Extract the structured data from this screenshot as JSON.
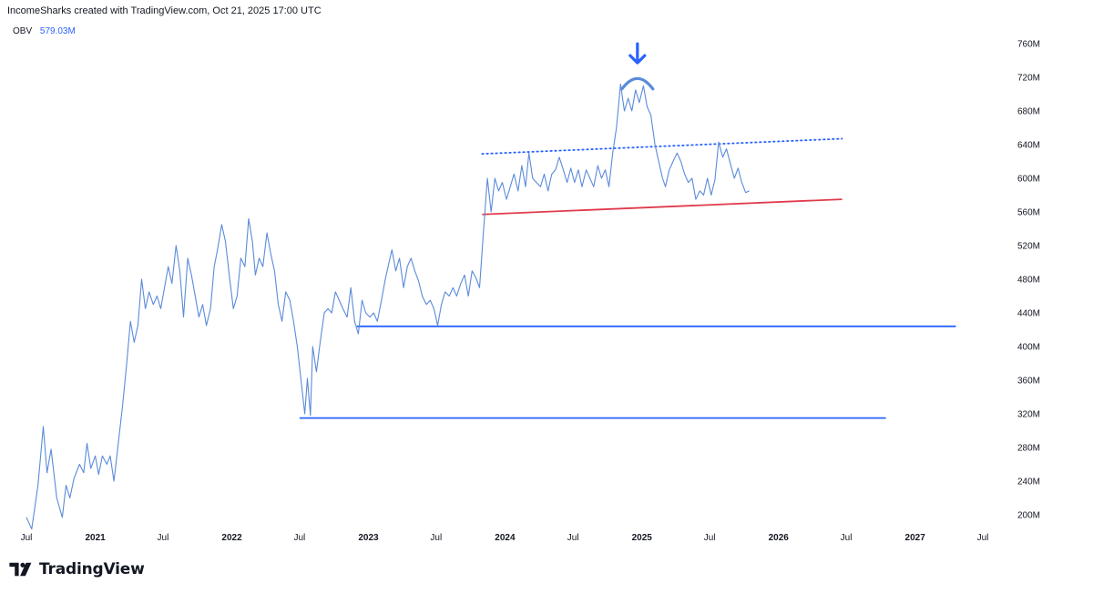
{
  "header": {
    "attribution": "IncomeSharks created with TradingView.com, Oct 21, 2025 17:00 UTC"
  },
  "legend": {
    "indicator": "OBV",
    "value": "579.03M",
    "value_color": "#2962ff"
  },
  "brand": {
    "name": "TradingView"
  },
  "chart_data": {
    "type": "line",
    "indicator": "OBV",
    "unit": "M",
    "y_ticks": [
      200,
      240,
      280,
      320,
      360,
      400,
      440,
      480,
      520,
      560,
      600,
      640,
      680,
      720,
      760
    ],
    "y_tick_labels": [
      "200M",
      "240M",
      "280M",
      "320M",
      "360M",
      "400M",
      "440M",
      "480M",
      "520M",
      "560M",
      "600M",
      "640M",
      "680M",
      "720M",
      "760M"
    ],
    "x_ticks": [
      {
        "date": "2020-07-01",
        "label": "Jul",
        "bold": false
      },
      {
        "date": "2021-01-01",
        "label": "2021",
        "bold": true
      },
      {
        "date": "2021-07-01",
        "label": "Jul",
        "bold": false
      },
      {
        "date": "2022-01-01",
        "label": "2022",
        "bold": true
      },
      {
        "date": "2022-07-01",
        "label": "Jul",
        "bold": false
      },
      {
        "date": "2023-01-01",
        "label": "2023",
        "bold": true
      },
      {
        "date": "2023-07-01",
        "label": "Jul",
        "bold": false
      },
      {
        "date": "2024-01-01",
        "label": "2024",
        "bold": true
      },
      {
        "date": "2024-07-01",
        "label": "Jul",
        "bold": false
      },
      {
        "date": "2025-01-01",
        "label": "2025",
        "bold": true
      },
      {
        "date": "2025-07-01",
        "label": "Jul",
        "bold": false
      },
      {
        "date": "2026-01-01",
        "label": "2026",
        "bold": true
      },
      {
        "date": "2026-07-01",
        "label": "Jul",
        "bold": false
      },
      {
        "date": "2027-01-01",
        "label": "2027",
        "bold": true
      },
      {
        "date": "2027-07-01",
        "label": "Jul",
        "bold": false
      }
    ],
    "series": [
      {
        "color": "#5b8bd9",
        "points": [
          [
            "2020-07-01",
            197
          ],
          [
            "2020-07-15",
            183
          ],
          [
            "2020-08-01",
            235
          ],
          [
            "2020-08-15",
            305
          ],
          [
            "2020-08-25",
            250
          ],
          [
            "2020-09-05",
            278
          ],
          [
            "2020-09-20",
            220
          ],
          [
            "2020-10-05",
            197
          ],
          [
            "2020-10-15",
            235
          ],
          [
            "2020-10-25",
            220
          ],
          [
            "2020-11-05",
            243
          ],
          [
            "2020-11-20",
            260
          ],
          [
            "2020-12-01",
            250
          ],
          [
            "2020-12-10",
            285
          ],
          [
            "2020-12-20",
            255
          ],
          [
            "2021-01-01",
            270
          ],
          [
            "2021-01-10",
            248
          ],
          [
            "2021-01-20",
            270
          ],
          [
            "2021-02-01",
            260
          ],
          [
            "2021-02-10",
            270
          ],
          [
            "2021-02-20",
            240
          ],
          [
            "2021-03-01",
            275
          ],
          [
            "2021-03-15",
            330
          ],
          [
            "2021-03-25",
            375
          ],
          [
            "2021-04-05",
            430
          ],
          [
            "2021-04-15",
            405
          ],
          [
            "2021-04-25",
            425
          ],
          [
            "2021-05-05",
            480
          ],
          [
            "2021-05-15",
            445
          ],
          [
            "2021-05-25",
            465
          ],
          [
            "2021-06-05",
            450
          ],
          [
            "2021-06-15",
            460
          ],
          [
            "2021-06-25",
            445
          ],
          [
            "2021-07-05",
            470
          ],
          [
            "2021-07-15",
            495
          ],
          [
            "2021-07-25",
            475
          ],
          [
            "2021-08-05",
            520
          ],
          [
            "2021-08-15",
            490
          ],
          [
            "2021-08-25",
            435
          ],
          [
            "2021-09-05",
            505
          ],
          [
            "2021-09-15",
            485
          ],
          [
            "2021-09-25",
            460
          ],
          [
            "2021-10-05",
            435
          ],
          [
            "2021-10-15",
            450
          ],
          [
            "2021-10-25",
            425
          ],
          [
            "2021-11-05",
            445
          ],
          [
            "2021-11-15",
            495
          ],
          [
            "2021-11-25",
            518
          ],
          [
            "2021-12-05",
            545
          ],
          [
            "2021-12-15",
            525
          ],
          [
            "2021-12-25",
            485
          ],
          [
            "2022-01-05",
            445
          ],
          [
            "2022-01-15",
            460
          ],
          [
            "2022-01-25",
            505
          ],
          [
            "2022-02-05",
            495
          ],
          [
            "2022-02-15",
            552
          ],
          [
            "2022-02-25",
            525
          ],
          [
            "2022-03-05",
            485
          ],
          [
            "2022-03-15",
            505
          ],
          [
            "2022-03-25",
            495
          ],
          [
            "2022-04-05",
            535
          ],
          [
            "2022-04-15",
            510
          ],
          [
            "2022-04-25",
            490
          ],
          [
            "2022-05-05",
            450
          ],
          [
            "2022-05-15",
            430
          ],
          [
            "2022-05-25",
            465
          ],
          [
            "2022-06-05",
            455
          ],
          [
            "2022-06-15",
            430
          ],
          [
            "2022-06-25",
            400
          ],
          [
            "2022-07-05",
            360
          ],
          [
            "2022-07-15",
            320
          ],
          [
            "2022-07-22",
            362
          ],
          [
            "2022-07-30",
            318
          ],
          [
            "2022-08-05",
            400
          ],
          [
            "2022-08-15",
            370
          ],
          [
            "2022-08-25",
            405
          ],
          [
            "2022-09-05",
            440
          ],
          [
            "2022-09-15",
            445
          ],
          [
            "2022-09-25",
            440
          ],
          [
            "2022-10-05",
            465
          ],
          [
            "2022-10-15",
            455
          ],
          [
            "2022-10-25",
            445
          ],
          [
            "2022-11-05",
            435
          ],
          [
            "2022-11-15",
            470
          ],
          [
            "2022-11-25",
            430
          ],
          [
            "2022-12-05",
            415
          ],
          [
            "2022-12-15",
            455
          ],
          [
            "2022-12-25",
            440
          ],
          [
            "2023-01-05",
            435
          ],
          [
            "2023-01-15",
            440
          ],
          [
            "2023-01-25",
            430
          ],
          [
            "2023-02-05",
            455
          ],
          [
            "2023-02-15",
            480
          ],
          [
            "2023-02-25",
            500
          ],
          [
            "2023-03-05",
            515
          ],
          [
            "2023-03-15",
            490
          ],
          [
            "2023-03-25",
            505
          ],
          [
            "2023-04-05",
            470
          ],
          [
            "2023-04-15",
            495
          ],
          [
            "2023-04-25",
            505
          ],
          [
            "2023-05-05",
            490
          ],
          [
            "2023-05-15",
            478
          ],
          [
            "2023-05-25",
            460
          ],
          [
            "2023-06-05",
            450
          ],
          [
            "2023-06-15",
            455
          ],
          [
            "2023-06-25",
            445
          ],
          [
            "2023-07-05",
            425
          ],
          [
            "2023-07-15",
            450
          ],
          [
            "2023-07-25",
            465
          ],
          [
            "2023-08-05",
            460
          ],
          [
            "2023-08-15",
            470
          ],
          [
            "2023-08-25",
            460
          ],
          [
            "2023-09-05",
            475
          ],
          [
            "2023-09-15",
            485
          ],
          [
            "2023-09-25",
            460
          ],
          [
            "2023-10-05",
            490
          ],
          [
            "2023-10-15",
            482
          ],
          [
            "2023-10-25",
            470
          ],
          [
            "2023-11-05",
            540
          ],
          [
            "2023-11-15",
            600
          ],
          [
            "2023-11-25",
            560
          ],
          [
            "2023-12-05",
            600
          ],
          [
            "2023-12-15",
            585
          ],
          [
            "2023-12-25",
            595
          ],
          [
            "2024-01-05",
            575
          ],
          [
            "2024-01-15",
            590
          ],
          [
            "2024-01-25",
            605
          ],
          [
            "2024-02-05",
            585
          ],
          [
            "2024-02-15",
            615
          ],
          [
            "2024-02-25",
            590
          ],
          [
            "2024-03-05",
            630
          ],
          [
            "2024-03-15",
            600
          ],
          [
            "2024-03-25",
            595
          ],
          [
            "2024-04-05",
            590
          ],
          [
            "2024-04-15",
            605
          ],
          [
            "2024-04-25",
            585
          ],
          [
            "2024-05-05",
            605
          ],
          [
            "2024-05-15",
            610
          ],
          [
            "2024-05-25",
            625
          ],
          [
            "2024-06-05",
            610
          ],
          [
            "2024-06-15",
            595
          ],
          [
            "2024-06-25",
            612
          ],
          [
            "2024-07-05",
            595
          ],
          [
            "2024-07-15",
            610
          ],
          [
            "2024-07-25",
            590
          ],
          [
            "2024-08-05",
            610
          ],
          [
            "2024-08-15",
            600
          ],
          [
            "2024-08-25",
            590
          ],
          [
            "2024-09-05",
            615
          ],
          [
            "2024-09-15",
            600
          ],
          [
            "2024-09-25",
            610
          ],
          [
            "2024-10-05",
            590
          ],
          [
            "2024-10-15",
            630
          ],
          [
            "2024-10-25",
            660
          ],
          [
            "2024-11-05",
            712
          ],
          [
            "2024-11-15",
            680
          ],
          [
            "2024-11-25",
            695
          ],
          [
            "2024-12-05",
            680
          ],
          [
            "2024-12-15",
            705
          ],
          [
            "2024-12-25",
            690
          ],
          [
            "2025-01-05",
            710
          ],
          [
            "2025-01-15",
            685
          ],
          [
            "2025-01-25",
            675
          ],
          [
            "2025-02-05",
            640
          ],
          [
            "2025-02-15",
            620
          ],
          [
            "2025-02-25",
            600
          ],
          [
            "2025-03-05",
            590
          ],
          [
            "2025-03-15",
            610
          ],
          [
            "2025-03-25",
            620
          ],
          [
            "2025-04-05",
            630
          ],
          [
            "2025-04-15",
            620
          ],
          [
            "2025-04-25",
            605
          ],
          [
            "2025-05-05",
            595
          ],
          [
            "2025-05-15",
            600
          ],
          [
            "2025-05-25",
            575
          ],
          [
            "2025-06-05",
            585
          ],
          [
            "2025-06-15",
            580
          ],
          [
            "2025-06-25",
            600
          ],
          [
            "2025-07-05",
            580
          ],
          [
            "2025-07-15",
            598
          ],
          [
            "2025-07-25",
            643
          ],
          [
            "2025-08-05",
            625
          ],
          [
            "2025-08-15",
            635
          ],
          [
            "2025-08-25",
            618
          ],
          [
            "2025-09-05",
            600
          ],
          [
            "2025-09-15",
            612
          ],
          [
            "2025-09-25",
            595
          ],
          [
            "2025-10-05",
            583
          ],
          [
            "2025-10-15",
            585
          ]
        ]
      }
    ],
    "annotations": [
      {
        "kind": "trendline",
        "style": "dotted",
        "color": "#2962ff",
        "from": [
          "2023-11-01",
          629
        ],
        "to": [
          "2026-06-20",
          647
        ]
      },
      {
        "kind": "trendline",
        "style": "solid",
        "color": "#e03b4c",
        "from": [
          "2023-11-01",
          557
        ],
        "to": [
          "2026-06-20",
          575
        ]
      },
      {
        "kind": "horizontal",
        "style": "solid",
        "color": "#2962ff",
        "from": [
          "2022-12-01",
          424
        ],
        "to": [
          "2027-04-20",
          424
        ]
      },
      {
        "kind": "horizontal",
        "style": "solid",
        "color": "#2962ff",
        "from": [
          "2022-07-01",
          315
        ],
        "to": [
          "2026-10-15",
          315
        ]
      },
      {
        "kind": "arc",
        "color": "#5b8bd9",
        "at": [
          "2024-12-20",
          718
        ]
      },
      {
        "kind": "arrow",
        "direction": "down",
        "color": "#2962ff",
        "at": [
          "2024-12-20",
          748
        ]
      }
    ],
    "grid": false,
    "y_axis_position": "right"
  }
}
